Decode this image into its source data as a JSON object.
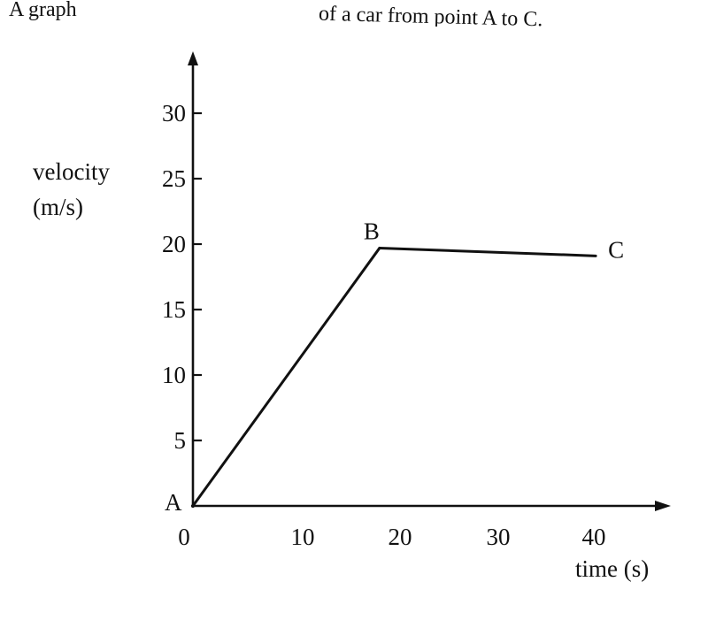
{
  "caption": {
    "left_fragment": "A graph",
    "right_fragment": "of a car from point A to C."
  },
  "chart_data": {
    "type": "line",
    "xlabel": "time (s)",
    "ylabel_line1": "velocity",
    "ylabel_line2": "(m/s)",
    "xlim": [
      0,
      48
    ],
    "ylim": [
      0,
      35
    ],
    "x_ticks": [
      0,
      10,
      20,
      30,
      40
    ],
    "x_tick_labels": [
      "0",
      "10",
      "20",
      "30",
      "40"
    ],
    "y_ticks": [
      5,
      10,
      15,
      20,
      25,
      30
    ],
    "y_tick_labels": [
      "5",
      "10",
      "15",
      "20",
      "25",
      "30"
    ],
    "grid": false,
    "series": [
      {
        "points": [
          {
            "label": "A",
            "x": 0,
            "y": 0
          },
          {
            "label": "B",
            "x": 19,
            "y": 19.7
          },
          {
            "label": "C",
            "x": 41,
            "y": 19.1
          }
        ]
      }
    ],
    "colors": {
      "axis": "#111111",
      "line": "#111111"
    }
  }
}
